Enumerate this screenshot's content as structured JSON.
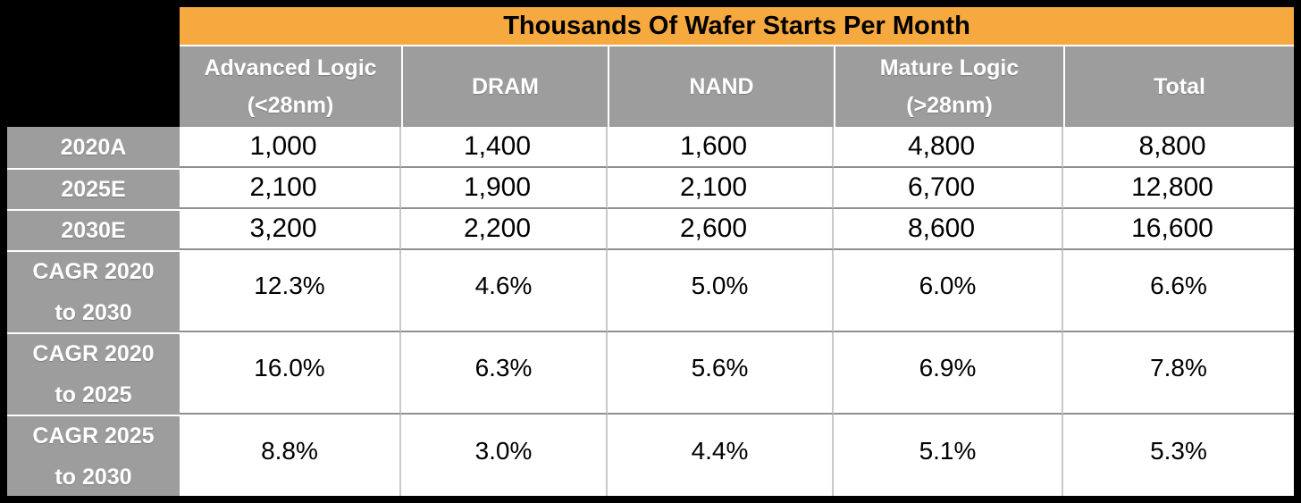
{
  "title": "Thousands Of Wafer Starts Per Month",
  "colors": {
    "title_bg": "#F5A93F",
    "header_bg": "#9D9D9D",
    "label_bg": "#9D9D9D",
    "canvas_bg": "#000000",
    "cell_bg": "#FFFFFF",
    "grid_line_horizontal": "#8F8F8F",
    "grid_line_vertical": "#C8C8C8",
    "title_text": "#000000",
    "header_text": "#FFFFFF",
    "cell_text": "#000000"
  },
  "table": {
    "col_headers": [
      "Advanced Logic (<28nm)",
      "DRAM",
      "NAND",
      "Mature Logic (>28nm)",
      "Total"
    ],
    "rows": [
      {
        "label": "2020A",
        "values": [
          "1,000",
          "1,400",
          "1,600",
          "4,800",
          "8,800"
        ]
      },
      {
        "label": "2025E",
        "values": [
          "2,100",
          "1,900",
          "2,100",
          "6,700",
          "12,800"
        ]
      },
      {
        "label": "2030E",
        "values": [
          "3,200",
          "2,200",
          "2,600",
          "8,600",
          "16,600"
        ]
      },
      {
        "label": "CAGR 2020\nto 2030",
        "values": [
          "12.3%",
          "4.6%",
          "5.0%",
          "6.0%",
          "6.6%"
        ]
      },
      {
        "label": "CAGR 2020\nto 2025",
        "values": [
          "16.0%",
          "6.3%",
          "5.6%",
          "6.9%",
          "7.8%"
        ]
      },
      {
        "label": "CAGR 2025\nto 2030",
        "values": [
          "8.8%",
          "3.0%",
          "4.4%",
          "5.1%",
          "5.3%"
        ]
      }
    ]
  },
  "chart_data": {
    "type": "table",
    "title": "Thousands Of Wafer Starts Per Month",
    "columns": [
      "Advanced Logic (<28nm)",
      "DRAM",
      "NAND",
      "Mature Logic (>28nm)",
      "Total"
    ],
    "row_labels": [
      "2020A",
      "2025E",
      "2030E",
      "CAGR 2020 to 2030",
      "CAGR 2020 to 2025",
      "CAGR 2025 to 2030"
    ],
    "wafer_starts_thousands": {
      "2020A": [
        1000,
        1400,
        1600,
        4800,
        8800
      ],
      "2025E": [
        2100,
        1900,
        2100,
        6700,
        12800
      ],
      "2030E": [
        3200,
        2200,
        2600,
        8600,
        16600
      ]
    },
    "cagr_percent": {
      "2020_to_2030": [
        12.3,
        4.6,
        5.0,
        6.0,
        6.6
      ],
      "2020_to_2025": [
        16.0,
        6.3,
        5.6,
        6.9,
        7.8
      ],
      "2025_to_2030": [
        8.8,
        3.0,
        4.4,
        5.1,
        5.3
      ]
    }
  }
}
